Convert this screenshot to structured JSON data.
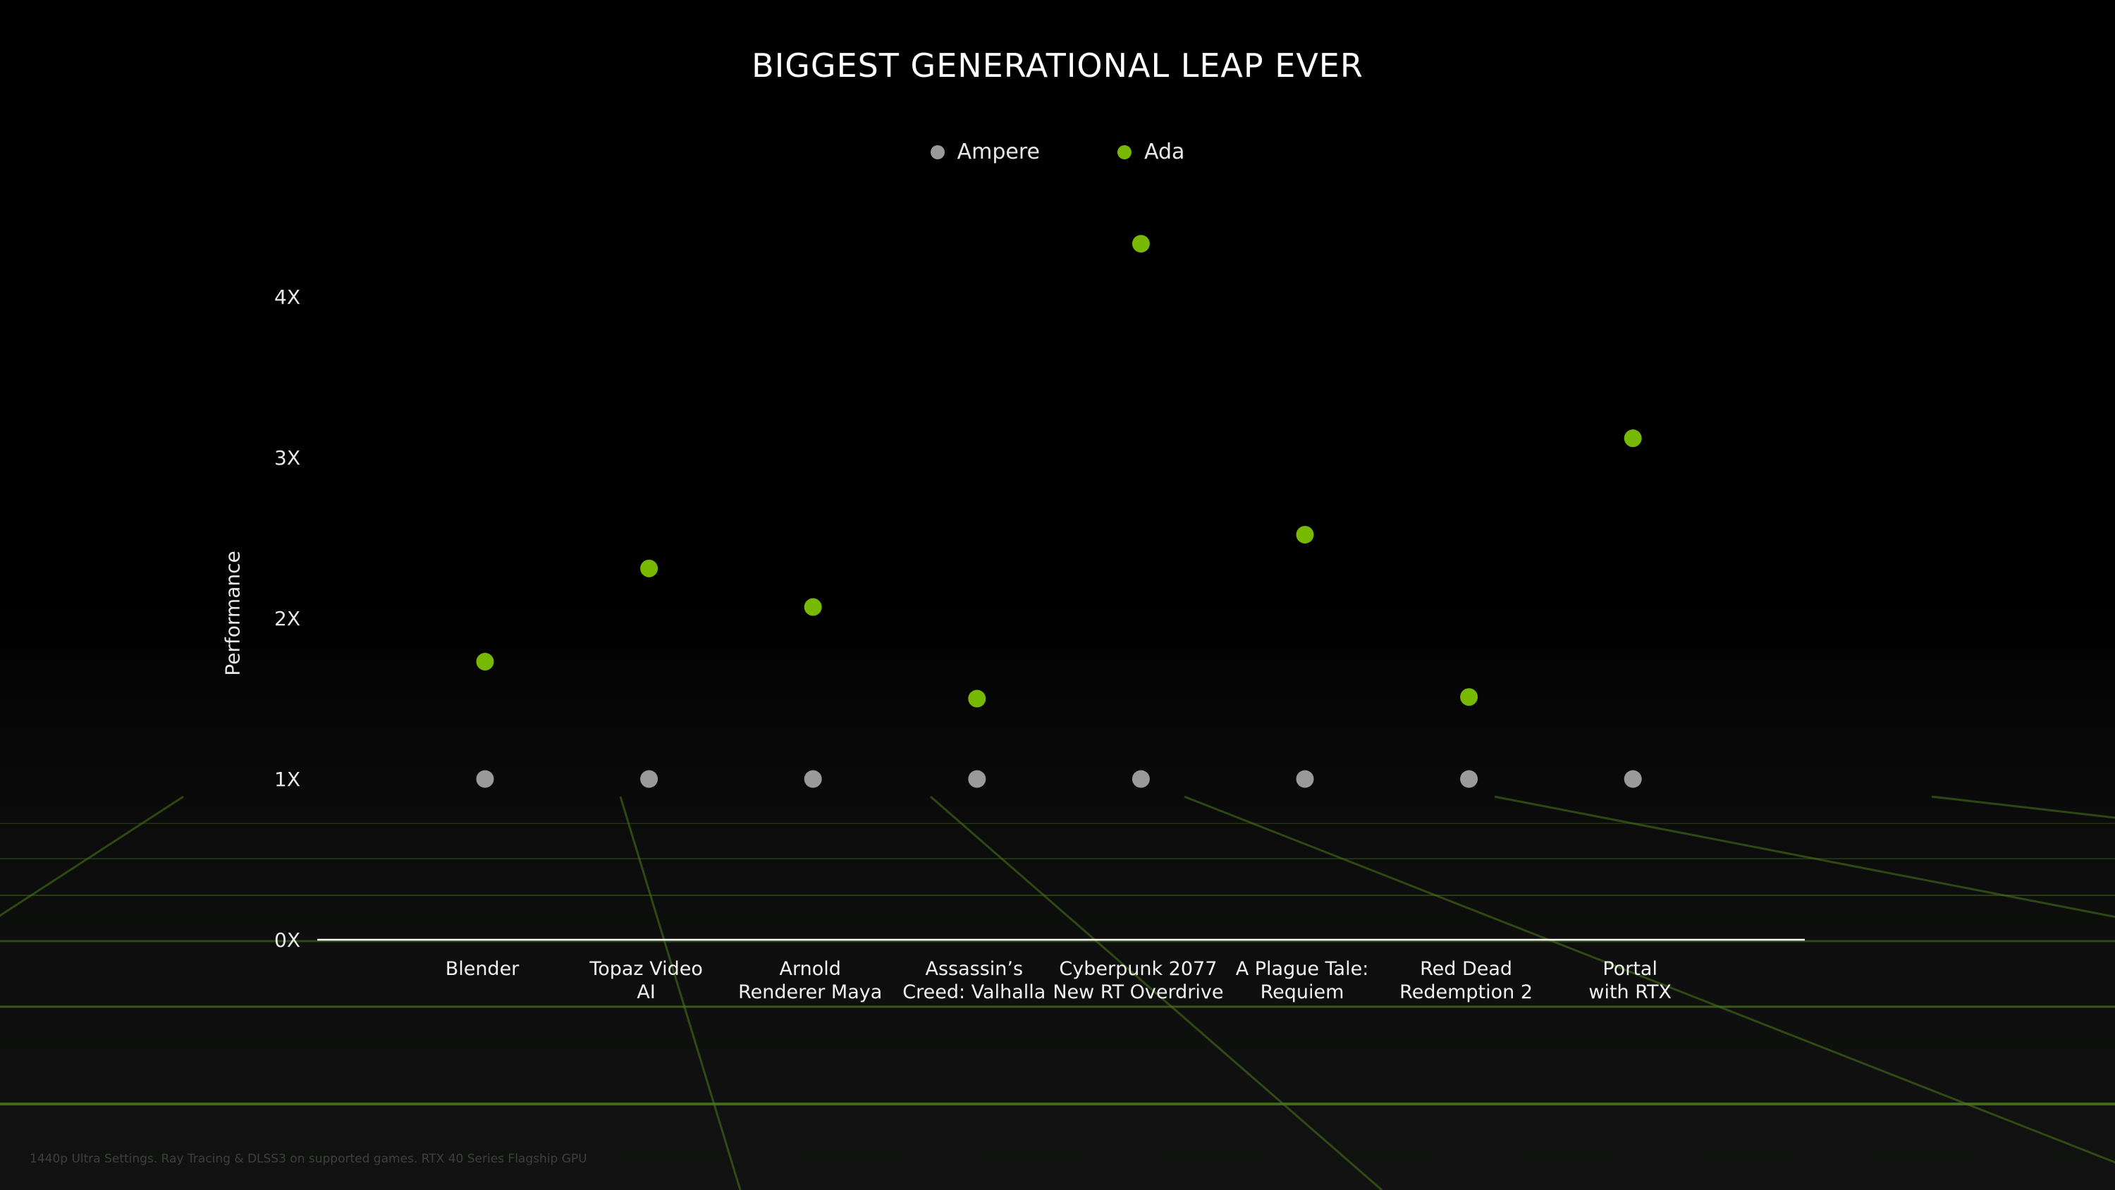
{
  "chart_data": {
    "type": "scatter",
    "title": "BIGGEST GENERATIONAL LEAP EVER",
    "ylabel": "Performance",
    "xlabel": "",
    "ylim": [
      0,
      4.5
    ],
    "yticks": [
      "0X",
      "1X",
      "2X",
      "3X",
      "4X"
    ],
    "ytick_values": [
      0,
      1,
      2,
      3,
      4
    ],
    "categories": [
      [
        "Blender"
      ],
      [
        "Topaz Video",
        "AI"
      ],
      [
        "Arnold",
        "Renderer Maya"
      ],
      [
        "Assassin’s",
        "Creed: Valhalla"
      ],
      [
        "Cyberpunk 2077",
        "New RT Overdrive"
      ],
      [
        "A Plague Tale:",
        "Requiem"
      ],
      [
        "Red Dead",
        "Redemption 2"
      ],
      [
        "Portal",
        "with RTX"
      ]
    ],
    "series": [
      {
        "name": "Ampere",
        "color": "#9a9a9a",
        "values": [
          1,
          1,
          1,
          1,
          1,
          1,
          1,
          1
        ]
      },
      {
        "name": "Ada",
        "color": "#76b900",
        "values": [
          1.73,
          2.31,
          2.07,
          1.5,
          4.33,
          2.52,
          1.51,
          3.12
        ]
      }
    ],
    "legend_position": "top-center",
    "grid": false,
    "axis_color": "#ffffff",
    "floor_grid_color": "#4a7a1a"
  },
  "footnote": "1440p Ultra Settings. Ray Tracing & DLSS3 on supported games.  RTX 40 Series Flagship GPU"
}
